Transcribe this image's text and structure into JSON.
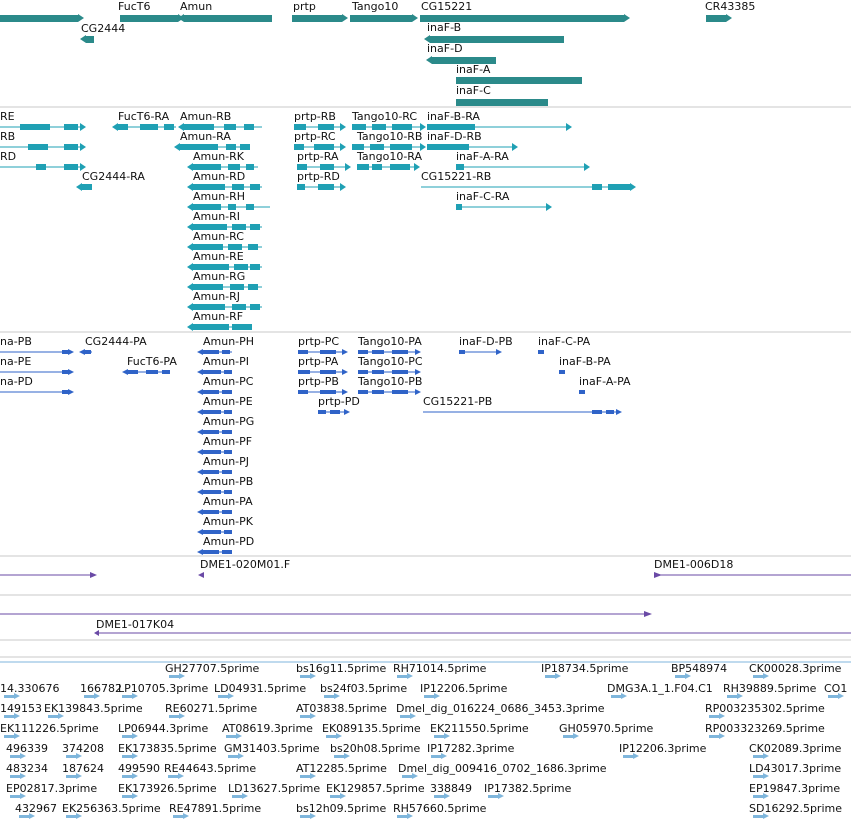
{
  "colors": {
    "gene": "#2b8a8a",
    "transcript": "#1fa0b4",
    "protein": "#2f63c8",
    "clone": "#6a4aa6",
    "est": "#7fb6dc",
    "separator": "#c8c8c8"
  },
  "tracks": {
    "genes": [
      {
        "label": "FucT6"
      },
      {
        "label": "Amun"
      },
      {
        "label": "prtp"
      },
      {
        "label": "Tango10"
      },
      {
        "label": "CG15221"
      },
      {
        "label": "CR43385"
      },
      {
        "label": "CG2444"
      },
      {
        "label": "inaF-B"
      },
      {
        "label": "inaF-D"
      },
      {
        "label": "inaF-A"
      },
      {
        "label": "inaF-C"
      }
    ],
    "transcripts": [
      {
        "label": "RE"
      },
      {
        "label": "RB"
      },
      {
        "label": "RD"
      },
      {
        "label": "CG2444-RA"
      },
      {
        "label": "FucT6-RA"
      },
      {
        "label": "Amun-RB"
      },
      {
        "label": "Amun-RA"
      },
      {
        "label": "Amun-RK"
      },
      {
        "label": "Amun-RD"
      },
      {
        "label": "Amun-RH"
      },
      {
        "label": "Amun-RI"
      },
      {
        "label": "Amun-RC"
      },
      {
        "label": "Amun-RE"
      },
      {
        "label": "Amun-RG"
      },
      {
        "label": "Amun-RJ"
      },
      {
        "label": "Amun-RF"
      },
      {
        "label": "prtp-RB"
      },
      {
        "label": "prtp-RC"
      },
      {
        "label": "prtp-RA"
      },
      {
        "label": "prtp-RD"
      },
      {
        "label": "Tango10-RC"
      },
      {
        "label": "Tango10-RB"
      },
      {
        "label": "Tango10-RA"
      },
      {
        "label": "inaF-B-RA"
      },
      {
        "label": "inaF-D-RB"
      },
      {
        "label": "inaF-A-RA"
      },
      {
        "label": "CG15221-RB"
      },
      {
        "label": "inaF-C-RA"
      }
    ],
    "proteins": [
      {
        "label": "na-PB"
      },
      {
        "label": "na-PE"
      },
      {
        "label": "na-PD"
      },
      {
        "label": "CG2444-PA"
      },
      {
        "label": "FucT6-PA"
      },
      {
        "label": "Amun-PH"
      },
      {
        "label": "Amun-PI"
      },
      {
        "label": "Amun-PC"
      },
      {
        "label": "Amun-PE"
      },
      {
        "label": "Amun-PG"
      },
      {
        "label": "Amun-PF"
      },
      {
        "label": "Amun-PJ"
      },
      {
        "label": "Amun-PB"
      },
      {
        "label": "Amun-PA"
      },
      {
        "label": "Amun-PK"
      },
      {
        "label": "Amun-PD"
      },
      {
        "label": "prtp-PC"
      },
      {
        "label": "prtp-PA"
      },
      {
        "label": "prtp-PB"
      },
      {
        "label": "prtp-PD"
      },
      {
        "label": "Tango10-PA"
      },
      {
        "label": "Tango10-PC"
      },
      {
        "label": "Tango10-PB"
      },
      {
        "label": "CG15221-PB"
      },
      {
        "label": "inaF-D-PB"
      },
      {
        "label": "inaF-C-PA"
      },
      {
        "label": "inaF-B-PA"
      },
      {
        "label": "inaF-A-PA"
      }
    ],
    "clones": [
      {
        "label": "DME1-020M01.F"
      },
      {
        "label": "DME1-006D18"
      },
      {
        "label": "DME1-017K04"
      }
    ],
    "ests": [
      {
        "label": "GH27707.5prime"
      },
      {
        "label": "bs16g11.5prime"
      },
      {
        "label": "RH71014.5prime"
      },
      {
        "label": "IP18734.5prime"
      },
      {
        "label": "BP548974"
      },
      {
        "label": "CK00028.3prime"
      },
      {
        "label": "14.330676"
      },
      {
        "label": "166782"
      },
      {
        "label": "LP10705.3prime"
      },
      {
        "label": "LD04931.5prime"
      },
      {
        "label": "bs24f03.5prime"
      },
      {
        "label": "IP12206.5prime"
      },
      {
        "label": "DMG3A.1_1.F04.C1"
      },
      {
        "label": "RH39889.5prime"
      },
      {
        "label": "CO1"
      },
      {
        "label": "149153"
      },
      {
        "label": "EK139843.5prime"
      },
      {
        "label": "RE60271.5prime"
      },
      {
        "label": "AT03838.5prime"
      },
      {
        "label": "Dmel_dig_016224_0686_3453.3prime"
      },
      {
        "label": "RP003235302.5prime"
      },
      {
        "label": "EK111226.5prime"
      },
      {
        "label": "LP06944.3prime"
      },
      {
        "label": "AT08619.3prime"
      },
      {
        "label": "EK089135.5prime"
      },
      {
        "label": "EK211550.5prime"
      },
      {
        "label": "GH05970.5prime"
      },
      {
        "label": "RP003323269.5prime"
      },
      {
        "label": "496339"
      },
      {
        "label": "374208"
      },
      {
        "label": "EK173835.5prime"
      },
      {
        "label": "GM31403.5prime"
      },
      {
        "label": "bs20h08.5prime"
      },
      {
        "label": "IP17282.3prime"
      },
      {
        "label": "IP12206.3prime"
      },
      {
        "label": "CK02089.3prime"
      },
      {
        "label": "483234"
      },
      {
        "label": "187624"
      },
      {
        "label": "499590"
      },
      {
        "label": "RE44643.5prime"
      },
      {
        "label": "AT12285.5prime"
      },
      {
        "label": "Dmel_dig_009416_0702_1686.3prime"
      },
      {
        "label": "LD43017.3prime"
      },
      {
        "label": "EP02817.3prime"
      },
      {
        "label": "EK173926.5prime"
      },
      {
        "label": "LD13627.5prime"
      },
      {
        "label": "EK129857.5prime"
      },
      {
        "label": "338849"
      },
      {
        "label": "IP17382.5prime"
      },
      {
        "label": "EP19847.3prime"
      },
      {
        "label": "432967"
      },
      {
        "label": "EK256363.5prime"
      },
      {
        "label": "RE47891.5prime"
      },
      {
        "label": "bs12h09.5prime"
      },
      {
        "label": "RH57660.5prime"
      },
      {
        "label": "SD16292.5prime"
      }
    ]
  }
}
